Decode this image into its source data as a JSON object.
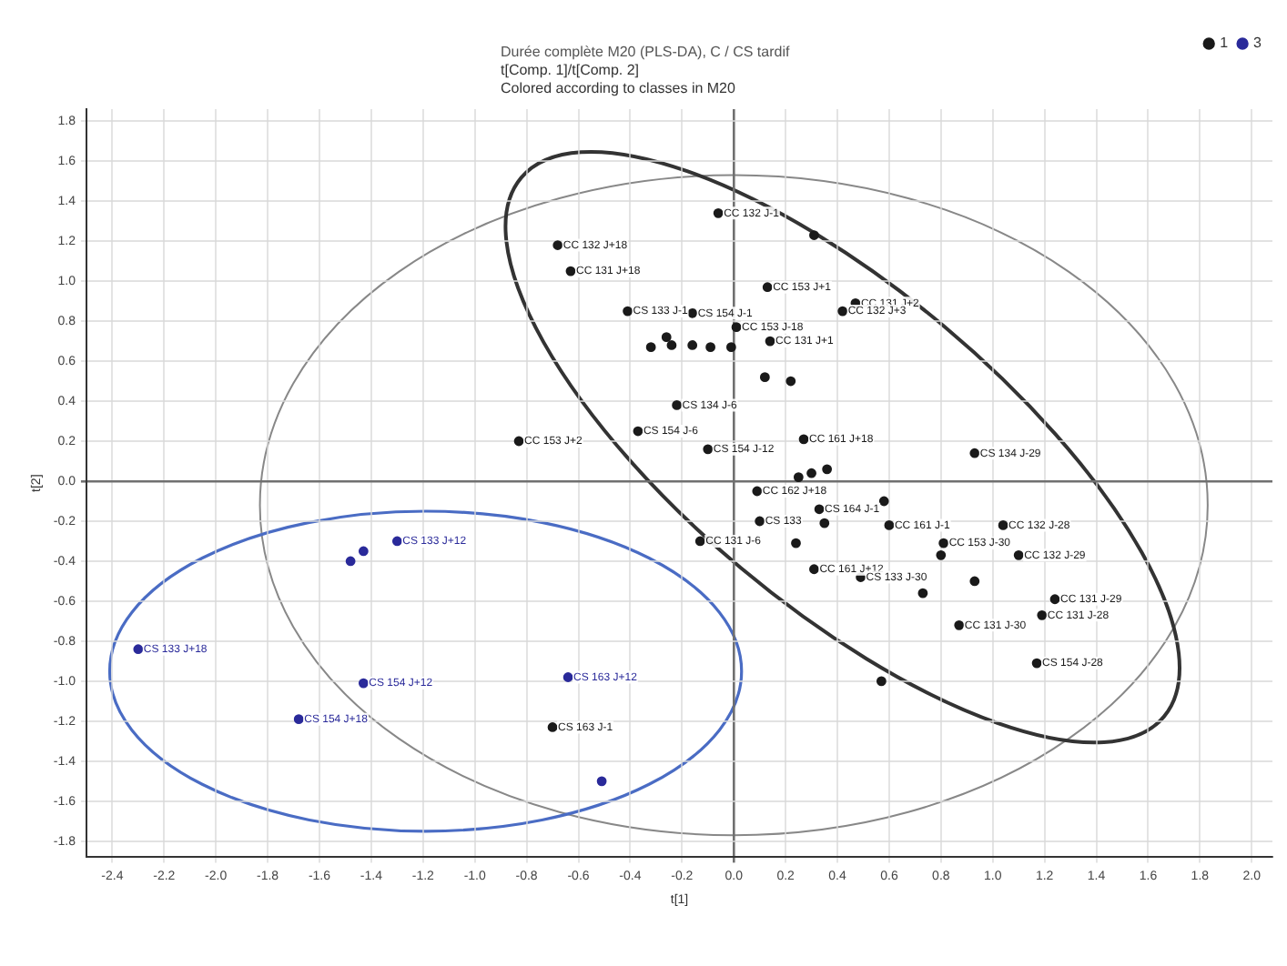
{
  "chart_data": {
    "type": "scatter",
    "title": "Durée complète M20 (PLS-DA), C / CS tardif",
    "subtitle": "t[Comp. 1]/t[Comp. 2]",
    "annotations": [
      "Colored according to classes in M20"
    ],
    "xlabel": "t[1]",
    "ylabel": "t[2]",
    "xlim": [
      -2.5,
      2.08
    ],
    "ylim": [
      -1.88,
      1.86
    ],
    "xticks": [
      -2.4,
      -2.2,
      {
        "value": -2,
        "label": "-2.0"
      },
      -1.8,
      -1.6,
      -1.4,
      -1.2,
      {
        "value": -1,
        "label": "-1.0"
      },
      -0.8,
      -0.6,
      -0.4,
      -0.2,
      {
        "value": 0,
        "label": "0.0"
      },
      0.2,
      0.4,
      0.6,
      0.8,
      {
        "value": 1,
        "label": "1.0"
      },
      1.2,
      1.4,
      1.6,
      1.8,
      {
        "value": 2,
        "label": "2.0"
      }
    ],
    "yticks": [
      -1.8,
      -1.6,
      -1.4,
      -1.2,
      {
        "value": -1,
        "label": "-1.0"
      },
      -0.8,
      -0.6,
      -0.4,
      -0.2,
      {
        "value": 0,
        "label": "0.0"
      },
      0.2,
      0.4,
      0.6,
      0.8,
      {
        "value": 1,
        "label": "1.0"
      },
      1.2,
      1.4,
      1.6,
      1.8
    ],
    "grid": true,
    "legend": "top right",
    "marker": "circle",
    "series": [
      {
        "name": "1",
        "color": "#1a1a1a",
        "x": [
          -0.06,
          0.31,
          -0.68,
          -0.63,
          0.13,
          0.47,
          0.42,
          -0.41,
          -0.16,
          0.01,
          0.14,
          -0.26,
          -0.32,
          -0.24,
          -0.16,
          -0.09,
          -0.01,
          0.12,
          0.22,
          -0.22,
          -0.37,
          -0.1,
          -0.83,
          0.27,
          0.93,
          0.25,
          0.3,
          0.36,
          0.09,
          0.58,
          0.33,
          0.1,
          0.35,
          0.6,
          1.04,
          -0.13,
          0.24,
          0.81,
          0.8,
          1.1,
          0.31,
          0.49,
          0.93,
          0.73,
          1.24,
          1.19,
          0.87,
          1.17,
          0.57,
          -0.7
        ],
        "values": [
          1.34,
          1.23,
          1.18,
          1.05,
          0.97,
          0.89,
          0.85,
          0.85,
          0.84,
          0.77,
          0.7,
          0.72,
          0.67,
          0.68,
          0.68,
          0.67,
          0.67,
          0.52,
          0.5,
          0.38,
          0.25,
          0.16,
          0.2,
          0.21,
          0.14,
          0.02,
          0.04,
          0.06,
          -0.05,
          -0.1,
          -0.14,
          -0.2,
          -0.21,
          -0.22,
          -0.22,
          -0.3,
          -0.31,
          -0.31,
          -0.37,
          -0.37,
          -0.44,
          -0.48,
          -0.5,
          -0.56,
          -0.59,
          -0.67,
          -0.72,
          -0.91,
          -1.0,
          -1.23
        ],
        "value_labels": [
          "CC 132 J-1",
          null,
          "CC 132 J+18",
          "CC 131 J+18",
          "CC 153 J+1",
          "CC 131 J+2",
          "CC 132 J+3",
          "CS 133 J-1",
          "CS 154 J-1",
          "CC 153 J-18",
          "CC 131 J+1",
          null,
          null,
          null,
          null,
          null,
          null,
          null,
          null,
          "CS 134 J-6",
          "CS 154 J-6",
          "CS 154 J-12",
          "CC 153 J+2",
          "CC 161 J+18",
          "CS 134 J-29",
          null,
          null,
          null,
          "CC 162 J+18",
          null,
          "CS 164 J-1",
          "CS 133",
          null,
          "CC 161 J-1",
          "CC 132 J-28",
          "CC 131 J-6",
          null,
          "CC 153 J-30",
          null,
          "CC 132 J-29",
          "CC 161 J+12",
          "CS 133 J-30",
          null,
          null,
          "CC 131 J-29",
          "CC 131 J-28",
          "CC 131 J-30",
          "CS 154 J-28",
          null,
          "CS 163 J-1"
        ]
      },
      {
        "name": "3",
        "color": "#2a2a9a",
        "x": [
          -1.3,
          -1.43,
          -1.48,
          -2.3,
          -1.43,
          -1.68,
          -0.64,
          -0.51
        ],
        "values": [
          -0.3,
          -0.35,
          -0.4,
          -0.84,
          -1.01,
          -1.19,
          -0.98,
          -1.5
        ],
        "value_labels": [
          "CS 133 J+12",
          null,
          null,
          "CS 133 J+18",
          "CS 154 J+12",
          "CS 154 J+18",
          "CS 163 J+12",
          null
        ]
      }
    ]
  }
}
